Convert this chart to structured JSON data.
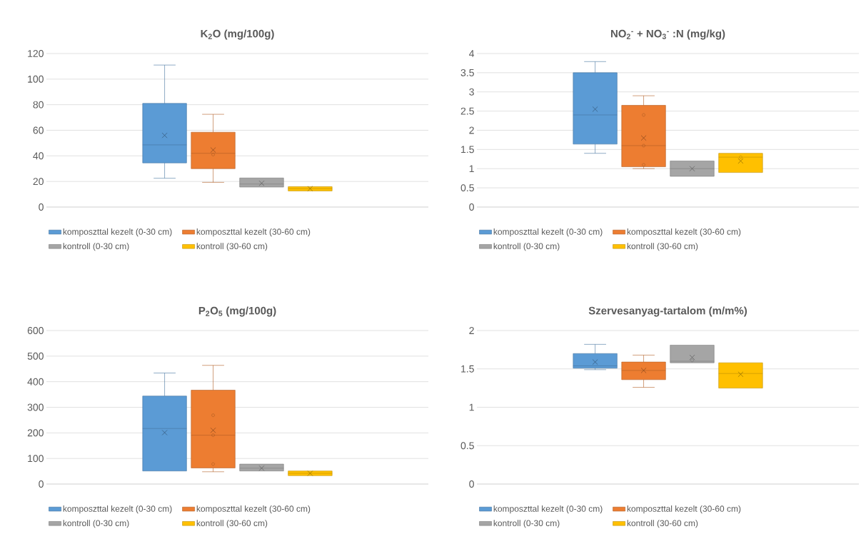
{
  "chart_data": [
    {
      "type": "box",
      "title": "K$_{2}$O (mg/100g)",
      "categories": [
        null
      ],
      "ylim": [
        0,
        120
      ],
      "yticks": [
        0,
        20,
        40,
        60,
        80,
        100,
        120
      ],
      "grid": "y",
      "legend": "bottom",
      "series": [
        {
          "name": "komposzttal kezelt (0-30 cm)",
          "color": "#5b9bd5",
          "boxes": [
            {
              "low": 22.5,
              "q1": 34.5,
              "median": 48.6,
              "q3": 81,
              "high": 111,
              "mean": 56
            }
          ]
        },
        {
          "name": "komposzttal kezelt (30-60 cm)",
          "color": "#ed7d31",
          "boxes": [
            {
              "low": 19.3,
              "q1": 30,
              "median": 42,
              "q3": 58.5,
              "high": 72.5,
              "mean": 44.6,
              "outliers": [
                41
              ]
            }
          ]
        },
        {
          "name": "kontroll (0-30 cm)",
          "color": "#a5a5a5",
          "boxes": [
            {
              "low": 15.6,
              "q1": 15.6,
              "median": 18,
              "q3": 22.7,
              "high": 22.7,
              "mean": 18.6
            }
          ]
        },
        {
          "name": "kontroll (30-60 cm)",
          "color": "#ffc000",
          "boxes": [
            {
              "low": 12.6,
              "q1": 12.6,
              "median": 14.4,
              "q3": 15.9,
              "high": 15.9,
              "mean": 14.4
            }
          ]
        }
      ]
    },
    {
      "type": "box",
      "title": "NO$_{2}$$^{-}$ + NO$_{3}$$^{-}$ :N (mg/kg)",
      "categories": [
        null
      ],
      "ylim": [
        0,
        4
      ],
      "yticks": [
        0,
        0.5,
        1,
        1.5,
        2,
        2.5,
        3,
        3.5,
        4
      ],
      "grid": "y",
      "legend": "bottom",
      "series": [
        {
          "name": "komposzttal kezelt (0-30 cm)",
          "color": "#5b9bd5",
          "boxes": [
            {
              "low": 1.4,
              "q1": 1.64,
              "median": 2.4,
              "q3": 3.5,
              "high": 3.79,
              "mean": 2.55
            }
          ]
        },
        {
          "name": "komposzttal kezelt (30-60 cm)",
          "color": "#ed7d31",
          "boxes": [
            {
              "low": 1.0,
              "q1": 1.05,
              "median": 1.6,
              "q3": 2.65,
              "high": 2.9,
              "mean": 1.8,
              "outliers": [
                2.4,
                1.6,
                1.1
              ]
            }
          ]
        },
        {
          "name": "kontroll (0-30 cm)",
          "color": "#a5a5a5",
          "boxes": [
            {
              "low": 0.8,
              "q1": 0.8,
              "median": 1.0,
              "q3": 1.2,
              "high": 1.2,
              "mean": 1.0
            }
          ]
        },
        {
          "name": "kontroll (30-60 cm)",
          "color": "#ffc000",
          "boxes": [
            {
              "low": 0.9,
              "q1": 0.9,
              "median": 1.3,
              "q3": 1.4,
              "high": 1.4,
              "mean": 1.2,
              "outliers": [
                1.3
              ]
            }
          ]
        }
      ]
    },
    {
      "type": "box",
      "title": "P$_{2}$O$_{5}$ (mg/100g)",
      "categories": [
        null
      ],
      "ylim": [
        0,
        600
      ],
      "yticks": [
        0,
        100,
        200,
        300,
        400,
        500,
        600
      ],
      "grid": "y",
      "legend": "bottom",
      "series": [
        {
          "name": "komposzttal kezelt (0-30 cm)",
          "color": "#5b9bd5",
          "boxes": [
            {
              "low": 51,
              "q1": 51,
              "median": 217,
              "q3": 344,
              "high": 434,
              "mean": 201
            }
          ]
        },
        {
          "name": "komposzttal kezelt (30-60 cm)",
          "color": "#ed7d31",
          "boxes": [
            {
              "low": 48,
              "q1": 63,
              "median": 191,
              "q3": 367,
              "high": 464,
              "mean": 210,
              "outliers": [
                269,
                191,
                78
              ]
            }
          ]
        },
        {
          "name": "kontroll (0-30 cm)",
          "color": "#a5a5a5",
          "boxes": [
            {
              "low": 51,
              "q1": 51,
              "median": 62,
              "q3": 78,
              "high": 78,
              "mean": 62
            }
          ]
        },
        {
          "name": "kontroll (30-60 cm)",
          "color": "#ffc000",
          "boxes": [
            {
              "low": 33,
              "q1": 33,
              "median": 42,
              "q3": 51,
              "high": 51,
              "mean": 42
            }
          ]
        }
      ]
    },
    {
      "type": "box",
      "title": "Szervesanyag-tartalom (m/m%)",
      "categories": [
        null
      ],
      "ylim": [
        0,
        2
      ],
      "yticks": [
        0,
        0.5,
        1,
        1.5,
        2
      ],
      "grid": "y",
      "legend": "bottom",
      "series": [
        {
          "name": "komposzttal kezelt (0-30 cm)",
          "color": "#5b9bd5",
          "boxes": [
            {
              "low": 1.49,
              "q1": 1.51,
              "median": 1.54,
              "q3": 1.7,
              "high": 1.82,
              "mean": 1.59
            }
          ]
        },
        {
          "name": "komposzttal kezelt (30-60 cm)",
          "color": "#ed7d31",
          "boxes": [
            {
              "low": 1.26,
              "q1": 1.36,
              "median": 1.48,
              "q3": 1.59,
              "high": 1.68,
              "mean": 1.48
            }
          ]
        },
        {
          "name": "kontroll (0-30 cm)",
          "color": "#a5a5a5",
          "boxes": [
            {
              "low": 1.58,
              "q1": 1.58,
              "median": 1.6,
              "q3": 1.81,
              "high": 1.81,
              "mean": 1.65,
              "outliers": [
                1.61
              ]
            }
          ]
        },
        {
          "name": "kontroll (30-60 cm)",
          "color": "#ffc000",
          "boxes": [
            {
              "low": 1.25,
              "q1": 1.25,
              "median": 1.44,
              "q3": 1.58,
              "high": 1.58,
              "mean": 1.43
            }
          ]
        }
      ]
    }
  ]
}
